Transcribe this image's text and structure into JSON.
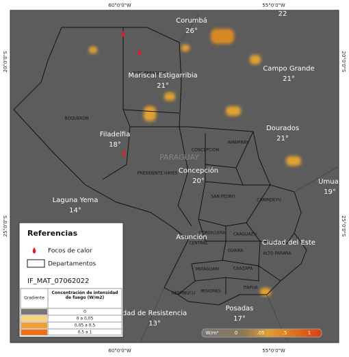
{
  "coordinates": {
    "top": [
      "60°0'0\"W",
      "55°0'0\"W"
    ],
    "bottom": [
      "60°0'0\"W",
      "55°0'0\"W"
    ],
    "left": [
      "20°0'0\"S",
      "25°0'0\"S"
    ],
    "right": [
      "20°0'0\"S",
      "25°0'0\"S"
    ]
  },
  "country": "PARAGUAY",
  "cities": [
    {
      "name": "Corumbá",
      "temp": "26°"
    },
    {
      "name": "Campo Grande",
      "temp": "21°"
    },
    {
      "name": "Dourados",
      "temp": "21°"
    },
    {
      "name": "Filadelfia",
      "temp": "18°"
    },
    {
      "name": "Concepción",
      "temp": "20°"
    },
    {
      "name": "Laguna Yema",
      "temp": "14°"
    },
    {
      "name": "Umuar",
      "temp": "19°"
    },
    {
      "name": "dad de Resistencia",
      "temp": "13°"
    },
    {
      "name": "Posadas",
      "temp": "17°"
    },
    {
      "name": "Mariscal Estigarribia",
      "temp": "21°"
    },
    {
      "name": "Asunción"
    },
    {
      "name": "Ciudad del Este"
    },
    {
      "name": "22"
    }
  ],
  "departments": [
    "ALTO PARAGUAY",
    "BOQUERON",
    "PRESIDENTE HAYES",
    "CONCEPCION",
    "AMAMBAY",
    "SAN PEDRO",
    "CANINDEYU",
    "CORDILLERA",
    "CENTRAL",
    "CAAGUAZU",
    "GUAIRA",
    "ALTO PARANA",
    "PARAGUARI",
    "CAAZAPA",
    "NEEMBUCU",
    "MISIONES",
    "ITAPUA"
  ],
  "legend": {
    "title": "Referencias",
    "fire": "Focos de calor",
    "departments": "Departamentos",
    "product": "IF_MAT_07062022",
    "table": {
      "headers": [
        "Gradiente",
        "Concentración de intensidad de fuego (W/m2)"
      ],
      "rows": [
        "0",
        "0 a 0,05",
        "0,05 a 0,5",
        "0,5 a 1"
      ]
    }
  },
  "colorbar": {
    "unit": "W/m²",
    "labels": [
      "0",
      ".05",
      ".5",
      "1"
    ]
  }
}
